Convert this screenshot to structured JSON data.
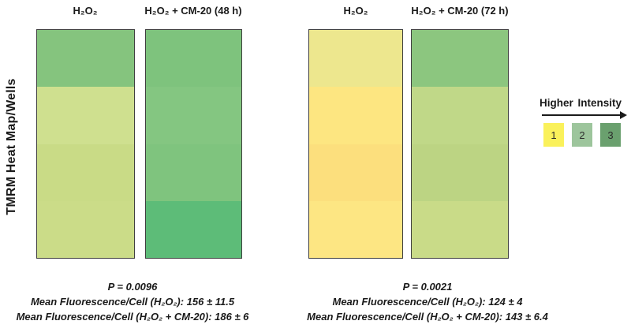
{
  "chart_data": {
    "type": "heatmap",
    "title": "TMRM Heat Map/Wells",
    "layout_hint": "4 vertical well-strips, each divided into 4 equal horizontal bands; legend at right; stats text below",
    "columns": [
      {
        "header": "H₂O₂",
        "panel": "48 h",
        "bands": [
          {
            "color": "#85C47E",
            "level_estimate": 2.3
          },
          {
            "color": "#CFE08F",
            "level_estimate": 1.6
          },
          {
            "color": "#C9DB86",
            "level_estimate": 1.6
          },
          {
            "color": "#CBDC88",
            "level_estimate": 1.6
          }
        ]
      },
      {
        "header": "H₂O₂ + CM-20 (48 h)",
        "panel": "48 h",
        "bands": [
          {
            "color": "#7EC37D",
            "level_estimate": 2.3
          },
          {
            "color": "#84C681",
            "level_estimate": 2.2
          },
          {
            "color": "#7FC47E",
            "level_estimate": 2.3
          },
          {
            "color": "#5DBC78",
            "level_estimate": 2.6
          }
        ]
      },
      {
        "header": "H₂O₂",
        "panel": "72 h",
        "bands": [
          {
            "color": "#EDE78E",
            "level_estimate": 1.3
          },
          {
            "color": "#FDE681",
            "level_estimate": 1.1
          },
          {
            "color": "#FCDF7D",
            "level_estimate": 1.0
          },
          {
            "color": "#FDE683",
            "level_estimate": 1.1
          }
        ]
      },
      {
        "header": "H₂O₂ + CM-20 (72 h)",
        "panel": "72 h",
        "bands": [
          {
            "color": "#8CC67F",
            "level_estimate": 2.3
          },
          {
            "color": "#C0D888",
            "level_estimate": 1.7
          },
          {
            "color": "#BCD483",
            "level_estimate": 1.7
          },
          {
            "color": "#C9DB88",
            "level_estimate": 1.7
          }
        ]
      }
    ],
    "legend": {
      "title": "Higher Intensity",
      "levels": [
        {
          "value": "1",
          "color": "#FAF15B"
        },
        {
          "value": "2",
          "color": "#9DC59C"
        },
        {
          "value": "3",
          "color": "#6AA06E"
        }
      ]
    },
    "stats": [
      {
        "p_label": "P = 0.0096",
        "p": 0.0096,
        "line_h2o2": "Mean Fluorescence/Cell (H₂O₂): 156 ± 11.5",
        "mean_h2o2": 156,
        "sd_h2o2": 11.5,
        "line_cm20": "Mean Fluorescence/Cell (H₂O₂ + CM-20): 186 ± 6",
        "mean_cm20": 186,
        "sd_cm20": 6
      },
      {
        "p_label": "P = 0.0021",
        "p": 0.0021,
        "line_h2o2": "Mean Fluorescence/Cell (H₂O₂): 124 ± 4",
        "mean_h2o2": 124,
        "sd_h2o2": 4,
        "line_cm20": "Mean Fluorescence/Cell (H₂O₂ + CM-20): 143 ± 6.4",
        "mean_cm20": 143,
        "sd_cm20": 6.4
      }
    ]
  }
}
